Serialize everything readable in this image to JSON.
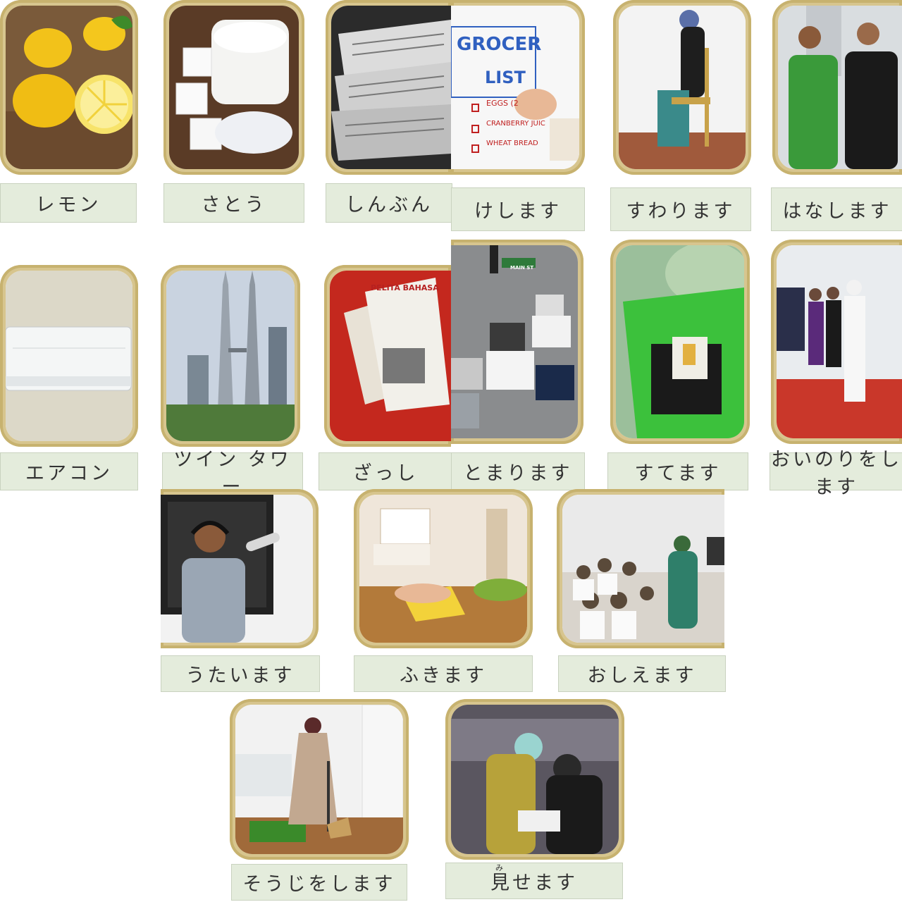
{
  "cards": [
    {
      "label": "レモン",
      "icon": "lemon-photo"
    },
    {
      "label": "さとう",
      "icon": "sugar-photo"
    },
    {
      "label": "しんぶん",
      "icon": "newspaper-photo"
    },
    {
      "label": "けします",
      "icon": "erase-photo",
      "board_text": [
        "GROCER",
        "LIST",
        "EGGS (2",
        "CRANBERRY JUIC",
        "WHEAT BREAD"
      ]
    },
    {
      "label": "すわります",
      "icon": "sit-photo"
    },
    {
      "label": "はなします",
      "icon": "talk-photo"
    },
    {
      "label": "エアコン",
      "icon": "air-conditioner-photo"
    },
    {
      "label": "ツイン タワー",
      "icon": "twin-towers-photo"
    },
    {
      "label": "ざっし",
      "icon": "magazine-photo",
      "magazine_title": "PELITA BAHASA"
    },
    {
      "label": "とまります",
      "icon": "stop-photo",
      "sign_text": "MAIN ST"
    },
    {
      "label": "すてます",
      "icon": "throw-away-photo"
    },
    {
      "label": "おいのりをします",
      "icon": "pray-photo"
    },
    {
      "label": "うたいます",
      "icon": "sing-photo"
    },
    {
      "label": "ふきます",
      "icon": "wipe-photo"
    },
    {
      "label": "おしえます",
      "icon": "teach-photo"
    },
    {
      "label": "そうじをします",
      "icon": "clean-photo"
    },
    {
      "label": "見せます",
      "icon": "show-photo",
      "furigana": "み"
    }
  ],
  "colors": {
    "frame": "#d7c58e",
    "label_bg": "#e4ecdc"
  }
}
